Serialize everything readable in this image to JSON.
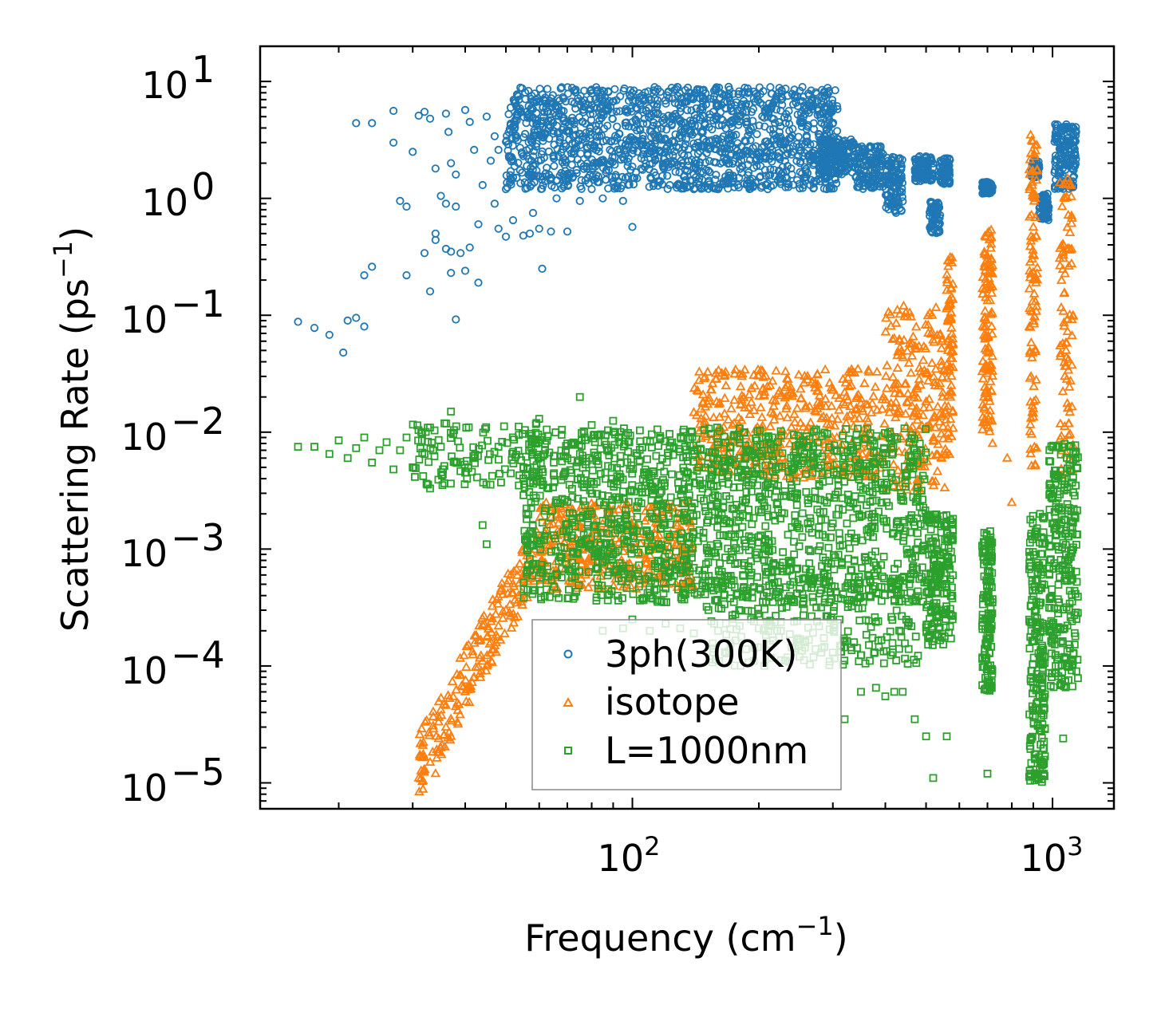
{
  "chart_data": {
    "type": "scatter",
    "title": "",
    "xlabel": "Frequency (cm",
    "xlabel_sup": "−1",
    "xlabel_end": ")",
    "ylabel": "Scattering Rate (ps",
    "ylabel_sup": "−1",
    "ylabel_end": ")",
    "xscale": "log",
    "yscale": "log",
    "xlim": [
      13,
      1400
    ],
    "ylim": [
      6e-06,
      20
    ],
    "x_ticks": [
      {
        "value": 100,
        "base": "10",
        "exp": "2"
      },
      {
        "value": 1000,
        "base": "10",
        "exp": "3"
      }
    ],
    "y_ticks": [
      {
        "value": 10,
        "base": "10",
        "exp": "1"
      },
      {
        "value": 1,
        "base": "10",
        "exp": "0"
      },
      {
        "value": 0.1,
        "base": "10",
        "exp": "−1"
      },
      {
        "value": 0.01,
        "base": "10",
        "exp": "−2"
      },
      {
        "value": 0.001,
        "base": "10",
        "exp": "−3"
      },
      {
        "value": 0.0001,
        "base": "10",
        "exp": "−4"
      },
      {
        "value": 1e-05,
        "base": "10",
        "exp": "−5"
      }
    ],
    "legend_position": "lower-center",
    "series": [
      {
        "name": "3ph(300K)",
        "marker": "circle",
        "color": "#1f77b4",
        "points": [
          [
            16,
            0.088
          ],
          [
            17.5,
            0.078
          ],
          [
            19,
            0.068
          ],
          [
            20.5,
            0.048
          ],
          [
            21,
            0.09
          ],
          [
            22,
            0.095
          ],
          [
            23,
            0.08
          ],
          [
            22,
            4.4
          ],
          [
            24,
            4.4
          ],
          [
            27,
            5.6
          ],
          [
            27,
            3.0
          ],
          [
            28,
            0.95
          ],
          [
            29,
            0.85
          ],
          [
            29,
            0.22
          ],
          [
            23,
            0.22
          ],
          [
            24,
            0.26
          ],
          [
            30,
            2.5
          ],
          [
            31,
            5.1
          ],
          [
            32,
            5.5
          ],
          [
            32,
            0.34
          ],
          [
            33,
            4.8
          ],
          [
            34,
            1.8
          ],
          [
            34,
            0.5
          ],
          [
            35,
            1.05
          ],
          [
            36,
            0.9
          ],
          [
            36,
            0.37
          ],
          [
            37,
            0.35
          ],
          [
            37,
            0.23
          ],
          [
            38,
            0.85
          ],
          [
            38,
            0.092
          ],
          [
            39,
            0.34
          ],
          [
            40,
            0.24
          ],
          [
            41,
            0.38
          ],
          [
            33,
            0.16
          ],
          [
            34,
            0.44
          ],
          [
            36,
            5.3
          ],
          [
            36.5,
            3.7
          ],
          [
            37,
            2.0
          ],
          [
            38,
            1.6
          ],
          [
            40,
            5.7
          ],
          [
            41,
            4.5
          ],
          [
            42,
            2.6
          ],
          [
            43,
            0.6
          ],
          [
            43,
            0.19
          ],
          [
            44,
            1.3
          ],
          [
            45,
            5.0
          ],
          [
            46,
            2.1
          ],
          [
            47,
            3.4
          ],
          [
            47,
            0.9
          ],
          [
            48,
            0.55
          ],
          [
            48,
            2.6
          ],
          [
            50,
            1.2
          ],
          [
            50,
            0.47
          ],
          [
            52,
            0.65
          ],
          [
            53,
            1.5
          ],
          [
            55,
            0.48
          ],
          [
            55,
            2.3
          ],
          [
            57,
            0.5
          ],
          [
            58,
            0.75
          ],
          [
            58,
            1.9
          ],
          [
            60,
            0.55
          ],
          [
            61,
            0.25
          ],
          [
            62,
            1.4
          ],
          [
            64,
            0.52
          ],
          [
            65,
            2.2
          ],
          [
            66,
            1.0
          ],
          [
            70,
            0.52
          ],
          [
            71,
            2.6
          ],
          [
            72,
            1.5
          ],
          [
            75,
            0.95
          ],
          [
            78,
            1.8
          ],
          [
            80,
            1.2
          ],
          [
            85,
            1.0
          ],
          [
            90,
            1.4
          ],
          [
            95,
            0.95
          ],
          [
            100,
            0.57
          ],
          [
            105,
            2.2
          ],
          [
            115,
            1.4
          ],
          [
            130,
            1.3
          ],
          [
            140,
            1.2
          ],
          [
            160,
            1.2
          ],
          [
            190,
            1.25
          ],
          [
            210,
            1.2
          ],
          [
            235,
            1.25
          ],
          [
            265,
            1.3
          ],
          [
            290,
            1.2
          ]
        ],
        "clusters": [
          {
            "x": [
              50,
              310
            ],
            "y": [
              1.2,
              9.0
            ],
            "count": 1500
          },
          {
            "x": [
              280,
              340
            ],
            "y": [
              1.6,
              3.2
            ],
            "count": 160
          },
          {
            "x": [
              340,
              395
            ],
            "y": [
              1.2,
              2.8
            ],
            "count": 130
          },
          {
            "x": [
              400,
              440
            ],
            "y": [
              0.75,
              2.3
            ],
            "count": 110
          },
          {
            "x": [
              470,
              520
            ],
            "y": [
              1.4,
              2.3
            ],
            "count": 90
          },
          {
            "x": [
              510,
              540
            ],
            "y": [
              0.5,
              0.95
            ],
            "count": 60
          },
          {
            "x": [
              540,
              570
            ],
            "y": [
              1.3,
              2.2
            ],
            "count": 80
          },
          {
            "x": [
              680,
              720
            ],
            "y": [
              1.1,
              1.4
            ],
            "count": 80
          },
          {
            "x": [
              890,
              930
            ],
            "y": [
              1.5,
              2.1
            ],
            "count": 50
          },
          {
            "x": [
              930,
              980
            ],
            "y": [
              0.65,
              1.1
            ],
            "count": 60
          },
          {
            "x": [
              1010,
              1140
            ],
            "y": [
              1.2,
              4.3
            ],
            "count": 160
          }
        ]
      },
      {
        "name": "isotope",
        "marker": "triangle",
        "color": "#ff7f0e",
        "points": [
          [
            31,
            1.1e-05
          ],
          [
            32,
            1.3e-05
          ],
          [
            33,
            1.5e-05
          ],
          [
            34,
            1.2e-05
          ],
          [
            35,
            2e-05
          ],
          [
            36,
            3e-05
          ],
          [
            37,
            2.5e-05
          ],
          [
            38,
            4.5e-05
          ],
          [
            40,
            6e-05
          ],
          [
            42,
            8e-05
          ],
          [
            44,
            0.00011
          ],
          [
            46,
            0.00016
          ],
          [
            48,
            0.00022
          ],
          [
            50,
            0.0003
          ],
          [
            52,
            0.00042
          ],
          [
            55,
            0.0006
          ],
          [
            57,
            0.0008
          ],
          [
            60,
            0.0011
          ],
          [
            800,
            0.0025
          ],
          [
            780,
            0.006
          ],
          [
            720,
            0.008
          ]
        ],
        "clusters": [
          {
            "x": [
              31,
              60
            ],
            "y_band": [
              1.1e-05,
              0.0008
            ],
            "power": 4.6,
            "count": 200
          },
          {
            "x": [
              60,
              140
            ],
            "y": [
              0.00045,
              0.0025
            ],
            "count": 380
          },
          {
            "x": [
              140,
              400
            ],
            "y": [
              0.004,
              0.035
            ],
            "count": 450
          },
          {
            "x": [
              400,
              560
            ],
            "y": [
              0.003,
              0.12
            ],
            "count": 220
          },
          {
            "x": [
              560,
              580
            ],
            "y": [
              0.006,
              0.33
            ],
            "count": 70
          },
          {
            "x": [
              680,
              720
            ],
            "y": [
              0.01,
              0.55
            ],
            "count": 120
          },
          {
            "x": [
              880,
              920
            ],
            "y": [
              0.005,
              3.5
            ],
            "count": 100
          },
          {
            "x": [
              1040,
              1120
            ],
            "y": [
              0.004,
              1.5
            ],
            "count": 90
          }
        ]
      },
      {
        "name": "L=1000nm",
        "marker": "square",
        "color": "#2ca02c",
        "points": [
          [
            16,
            0.0075
          ],
          [
            17.5,
            0.0075
          ],
          [
            19,
            0.0065
          ],
          [
            20,
            0.0085
          ],
          [
            21,
            0.006
          ],
          [
            22,
            0.0073
          ],
          [
            23,
            0.009
          ],
          [
            24,
            0.0055
          ],
          [
            25,
            0.007
          ],
          [
            26,
            0.0082
          ],
          [
            27,
            0.0048
          ],
          [
            28,
            0.007
          ],
          [
            29,
            0.009
          ],
          [
            30,
            0.005
          ],
          [
            32,
            0.0065
          ],
          [
            33,
            0.0033
          ],
          [
            35,
            0.0075
          ],
          [
            37,
            0.015
          ],
          [
            38,
            0.0055
          ],
          [
            40,
            0.0045
          ],
          [
            42,
            0.006
          ],
          [
            44,
            0.0016
          ],
          [
            45,
            0.0011
          ],
          [
            48,
            0.0075
          ],
          [
            52,
            0.0068
          ],
          [
            55,
            0.005
          ],
          [
            60,
            0.013
          ],
          [
            65,
            0.0055
          ],
          [
            70,
            0.008
          ],
          [
            75,
            0.02
          ],
          [
            80,
            0.0115
          ],
          [
            90,
            0.0125
          ],
          [
            85,
            0.0002
          ],
          [
            95,
            0.00021
          ],
          [
            100,
            0.00025
          ],
          [
            110,
            0.0002
          ],
          [
            120,
            0.00023
          ],
          [
            130,
            0.00021
          ],
          [
            140,
            0.00019
          ],
          [
            160,
            0.0002
          ],
          [
            180,
            0.00022
          ],
          [
            200,
            0.00021
          ],
          [
            250,
            0.00012
          ],
          [
            300,
            0.00013
          ],
          [
            320,
            3.5e-05
          ],
          [
            350,
            6e-05
          ],
          [
            380,
            6.5e-05
          ],
          [
            400,
            5.5e-05
          ],
          [
            420,
            6e-05
          ],
          [
            440,
            6e-05
          ],
          [
            470,
            3.5e-05
          ],
          [
            500,
            2.5e-05
          ],
          [
            520,
            1.1e-05
          ],
          [
            560,
            2.5e-05
          ],
          [
            700,
            1.2e-05
          ],
          [
            1060,
            2.4e-05
          ]
        ],
        "clusters": [
          {
            "x": [
              30,
              60
            ],
            "y": [
              0.0035,
              0.012
            ],
            "count": 120
          },
          {
            "x": [
              55,
              500
            ],
            "y": [
              0.00035,
              0.011
            ],
            "count": 1600
          },
          {
            "x": [
              150,
              480
            ],
            "y": [
              0.0001,
              0.0006
            ],
            "count": 260
          },
          {
            "x": [
              500,
              580
            ],
            "y": [
              0.00015,
              0.002
            ],
            "count": 180
          },
          {
            "x": [
              680,
              720
            ],
            "y": [
              6e-05,
              0.0015
            ],
            "count": 140
          },
          {
            "x": [
              880,
              960
            ],
            "y": [
              1e-05,
              0.002
            ],
            "count": 220
          },
          {
            "x": [
              980,
              1150
            ],
            "y": [
              6e-05,
              0.008
            ],
            "count": 260
          }
        ]
      }
    ]
  }
}
